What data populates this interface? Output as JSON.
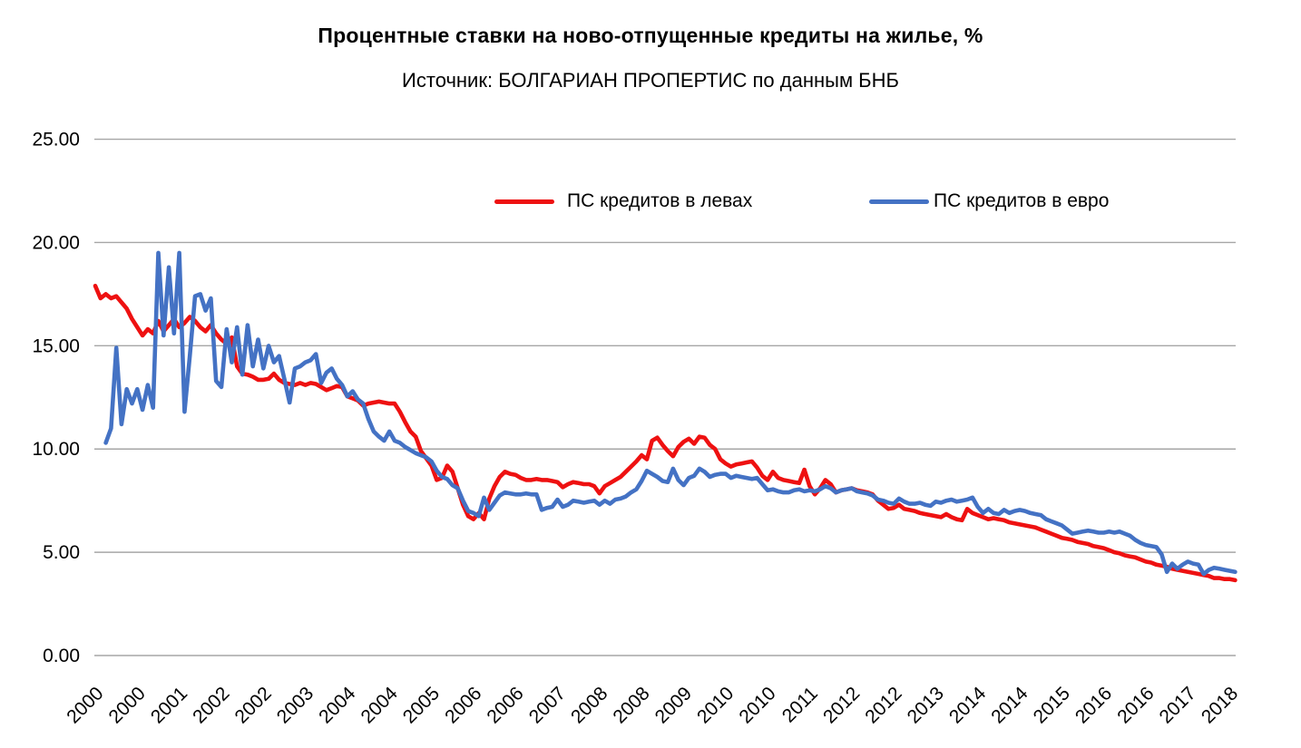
{
  "chart_data": {
    "type": "line",
    "title": "Процентные ставки на ново-отпущенные кредиты на жилье, %",
    "subtitle": "Источник: БОЛГАРИАН ПРОПЕРТИС по данным БНБ",
    "grid": true,
    "legend_position": "top-inside",
    "x_axis": {
      "frequency": "monthly",
      "start": "2000-01",
      "tick_interval_months": 8,
      "tick_labels": [
        "2000",
        "2000",
        "2001",
        "2002",
        "2002",
        "2003",
        "2004",
        "2004",
        "2005",
        "2006",
        "2006",
        "2007",
        "2008",
        "2008",
        "2009",
        "2010",
        "2010",
        "2011",
        "2012",
        "2012",
        "2013",
        "2014",
        "2014",
        "2015",
        "2016",
        "2016",
        "2017",
        "2018"
      ]
    },
    "y_axis": {
      "min": 0,
      "max": 25,
      "step": 5,
      "ticks": [
        0,
        5,
        10,
        15,
        20,
        25
      ],
      "tick_labels": [
        "0.00",
        "5.00",
        "10.00",
        "15.00",
        "20.00",
        "25.00"
      ]
    },
    "colors": {
      "leva": "#ee1111",
      "euro": "#4472c4",
      "gridline": "#a6a6a6"
    },
    "series": [
      {
        "name": "ПС кредитов в левах",
        "color": "#ee1111",
        "values": [
          17.9,
          17.3,
          17.5,
          17.3,
          17.4,
          17.1,
          16.8,
          16.3,
          15.9,
          15.5,
          15.8,
          15.6,
          16.2,
          15.7,
          16.0,
          16.3,
          15.9,
          16.1,
          16.4,
          16.2,
          15.9,
          15.7,
          16.0,
          15.6,
          15.3,
          15.1,
          15.4,
          14.0,
          13.65,
          13.6,
          13.5,
          13.35,
          13.35,
          13.4,
          13.65,
          13.35,
          13.2,
          13.15,
          13.1,
          13.2,
          13.1,
          13.2,
          13.15,
          13.0,
          12.85,
          12.95,
          13.05,
          13.0,
          12.55,
          12.45,
          12.35,
          12.1,
          12.2,
          12.25,
          12.3,
          12.25,
          12.2,
          12.2,
          11.8,
          11.3,
          10.85,
          10.6,
          9.9,
          9.55,
          9.2,
          8.5,
          8.6,
          9.2,
          8.9,
          8.1,
          7.3,
          6.75,
          6.6,
          6.9,
          6.6,
          7.6,
          8.2,
          8.65,
          8.9,
          8.8,
          8.75,
          8.6,
          8.5,
          8.5,
          8.55,
          8.5,
          8.5,
          8.45,
          8.4,
          8.15,
          8.3,
          8.4,
          8.35,
          8.3,
          8.3,
          8.2,
          7.85,
          8.2,
          8.35,
          8.5,
          8.65,
          8.9,
          9.15,
          9.4,
          9.7,
          9.5,
          10.4,
          10.55,
          10.2,
          9.9,
          9.65,
          10.1,
          10.35,
          10.5,
          10.25,
          10.6,
          10.55,
          10.2,
          10.0,
          9.5,
          9.3,
          9.15,
          9.25,
          9.3,
          9.35,
          9.4,
          9.1,
          8.7,
          8.5,
          8.9,
          8.6,
          8.5,
          8.45,
          8.4,
          8.35,
          9.0,
          8.2,
          7.8,
          8.1,
          8.5,
          8.3,
          7.9,
          8.0,
          8.05,
          8.1,
          8.0,
          7.95,
          7.9,
          7.8,
          7.5,
          7.3,
          7.1,
          7.15,
          7.3,
          7.1,
          7.05,
          7.0,
          6.9,
          6.85,
          6.8,
          6.75,
          6.7,
          6.85,
          6.7,
          6.6,
          6.55,
          7.1,
          6.9,
          6.8,
          6.7,
          6.6,
          6.65,
          6.6,
          6.55,
          6.45,
          6.4,
          6.35,
          6.3,
          6.25,
          6.2,
          6.1,
          6.0,
          5.9,
          5.8,
          5.7,
          5.65,
          5.6,
          5.5,
          5.45,
          5.4,
          5.3,
          5.25,
          5.2,
          5.1,
          5.0,
          4.95,
          4.85,
          4.8,
          4.75,
          4.65,
          4.55,
          4.5,
          4.4,
          4.35,
          4.3,
          4.2,
          4.15,
          4.1,
          4.05,
          4.0,
          3.95,
          3.9,
          3.85,
          3.75,
          3.75,
          3.7,
          3.7,
          3.65
        ]
      },
      {
        "name": "ПС кредитов в евро",
        "color": "#4472c4",
        "values": [
          null,
          null,
          10.3,
          11.0,
          14.9,
          11.2,
          12.9,
          12.2,
          12.9,
          11.9,
          13.1,
          12.0,
          19.5,
          15.5,
          18.8,
          15.6,
          19.5,
          11.8,
          14.5,
          17.4,
          17.5,
          16.7,
          17.3,
          13.3,
          13.0,
          15.8,
          14.2,
          15.9,
          13.6,
          16.0,
          14.0,
          15.3,
          13.9,
          15.0,
          14.2,
          14.5,
          13.4,
          12.25,
          13.9,
          14.0,
          14.2,
          14.3,
          14.6,
          13.2,
          13.7,
          13.9,
          13.4,
          13.1,
          12.55,
          12.8,
          12.4,
          12.2,
          11.45,
          10.85,
          10.6,
          10.4,
          10.85,
          10.4,
          10.3,
          10.1,
          9.95,
          9.8,
          9.7,
          9.6,
          9.4,
          8.95,
          8.65,
          8.55,
          8.25,
          8.1,
          7.5,
          7.0,
          6.9,
          6.75,
          7.65,
          7.05,
          7.4,
          7.75,
          7.9,
          7.85,
          7.8,
          7.8,
          7.85,
          7.8,
          7.8,
          7.05,
          7.15,
          7.2,
          7.55,
          7.2,
          7.3,
          7.5,
          7.45,
          7.4,
          7.45,
          7.5,
          7.3,
          7.5,
          7.35,
          7.55,
          7.6,
          7.7,
          7.9,
          8.05,
          8.45,
          8.95,
          8.8,
          8.65,
          8.45,
          8.4,
          9.05,
          8.5,
          8.25,
          8.6,
          8.7,
          9.05,
          8.9,
          8.65,
          8.75,
          8.8,
          8.8,
          8.6,
          8.7,
          8.65,
          8.6,
          8.55,
          8.6,
          8.3,
          8.0,
          8.05,
          7.95,
          7.9,
          7.9,
          8.0,
          8.05,
          7.95,
          8.0,
          7.95,
          8.05,
          8.2,
          8.1,
          7.9,
          8.0,
          8.05,
          8.1,
          7.95,
          7.9,
          7.85,
          7.75,
          7.55,
          7.5,
          7.4,
          7.35,
          7.6,
          7.45,
          7.35,
          7.35,
          7.4,
          7.3,
          7.25,
          7.45,
          7.4,
          7.5,
          7.55,
          7.45,
          7.5,
          7.55,
          7.65,
          7.2,
          6.9,
          7.1,
          6.9,
          6.85,
          7.05,
          6.9,
          7.0,
          7.05,
          7.0,
          6.9,
          6.85,
          6.8,
          6.6,
          6.5,
          6.4,
          6.3,
          6.1,
          5.9,
          5.95,
          6.0,
          6.05,
          6.0,
          5.95,
          5.95,
          6.0,
          5.95,
          6.0,
          5.9,
          5.8,
          5.6,
          5.45,
          5.35,
          5.3,
          5.25,
          4.9,
          4.05,
          4.45,
          4.2,
          4.4,
          4.55,
          4.45,
          4.4,
          3.95,
          4.15,
          4.25,
          4.2,
          4.15,
          4.1,
          4.05
        ]
      }
    ]
  }
}
